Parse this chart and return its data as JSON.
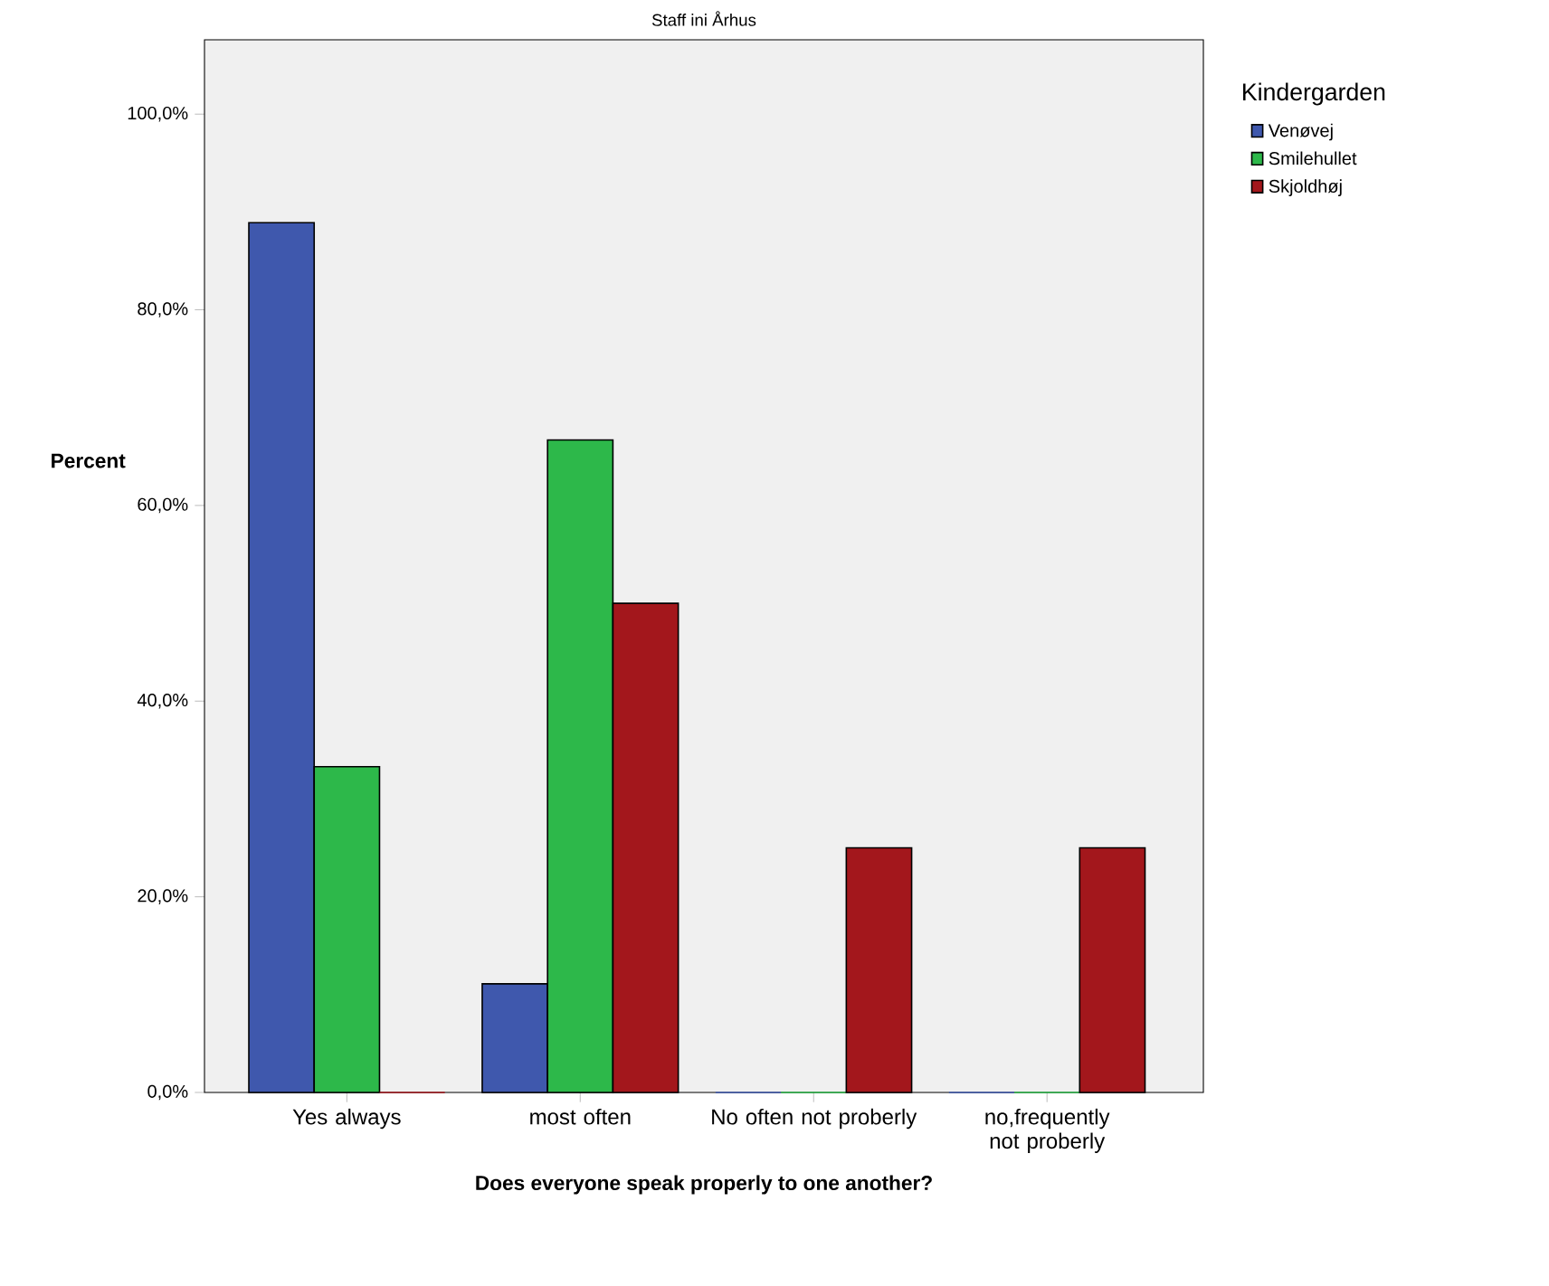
{
  "chart_data": {
    "type": "bar",
    "title": "Staff ini Århus",
    "xlabel": "Does everyone speak properly to one another?",
    "ylabel": "Percent",
    "legend_title": "Kindergarden",
    "categories": [
      "Yes always",
      "most often",
      "No often not proberly",
      "no,frequently not proberly"
    ],
    "series": [
      {
        "name": "Venøvej",
        "color": "#3f58ad",
        "values": [
          88.9,
          11.1,
          0,
          0
        ]
      },
      {
        "name": "Smilehullet",
        "color": "#2db84a",
        "values": [
          33.3,
          66.7,
          0,
          0
        ]
      },
      {
        "name": "Skjoldhøj",
        "color": "#a3171c",
        "values": [
          0,
          50,
          25,
          25
        ]
      }
    ],
    "ylim": [
      0,
      107.6
    ],
    "yticks": [
      {
        "value": 0,
        "label": "0,0%"
      },
      {
        "value": 20,
        "label": "20,0%"
      },
      {
        "value": 40,
        "label": "40,0%"
      },
      {
        "value": 60,
        "label": "60,0%"
      },
      {
        "value": 80,
        "label": "80,0%"
      },
      {
        "value": 100,
        "label": "100,0%"
      }
    ],
    "grid": false,
    "legend": "top right"
  }
}
